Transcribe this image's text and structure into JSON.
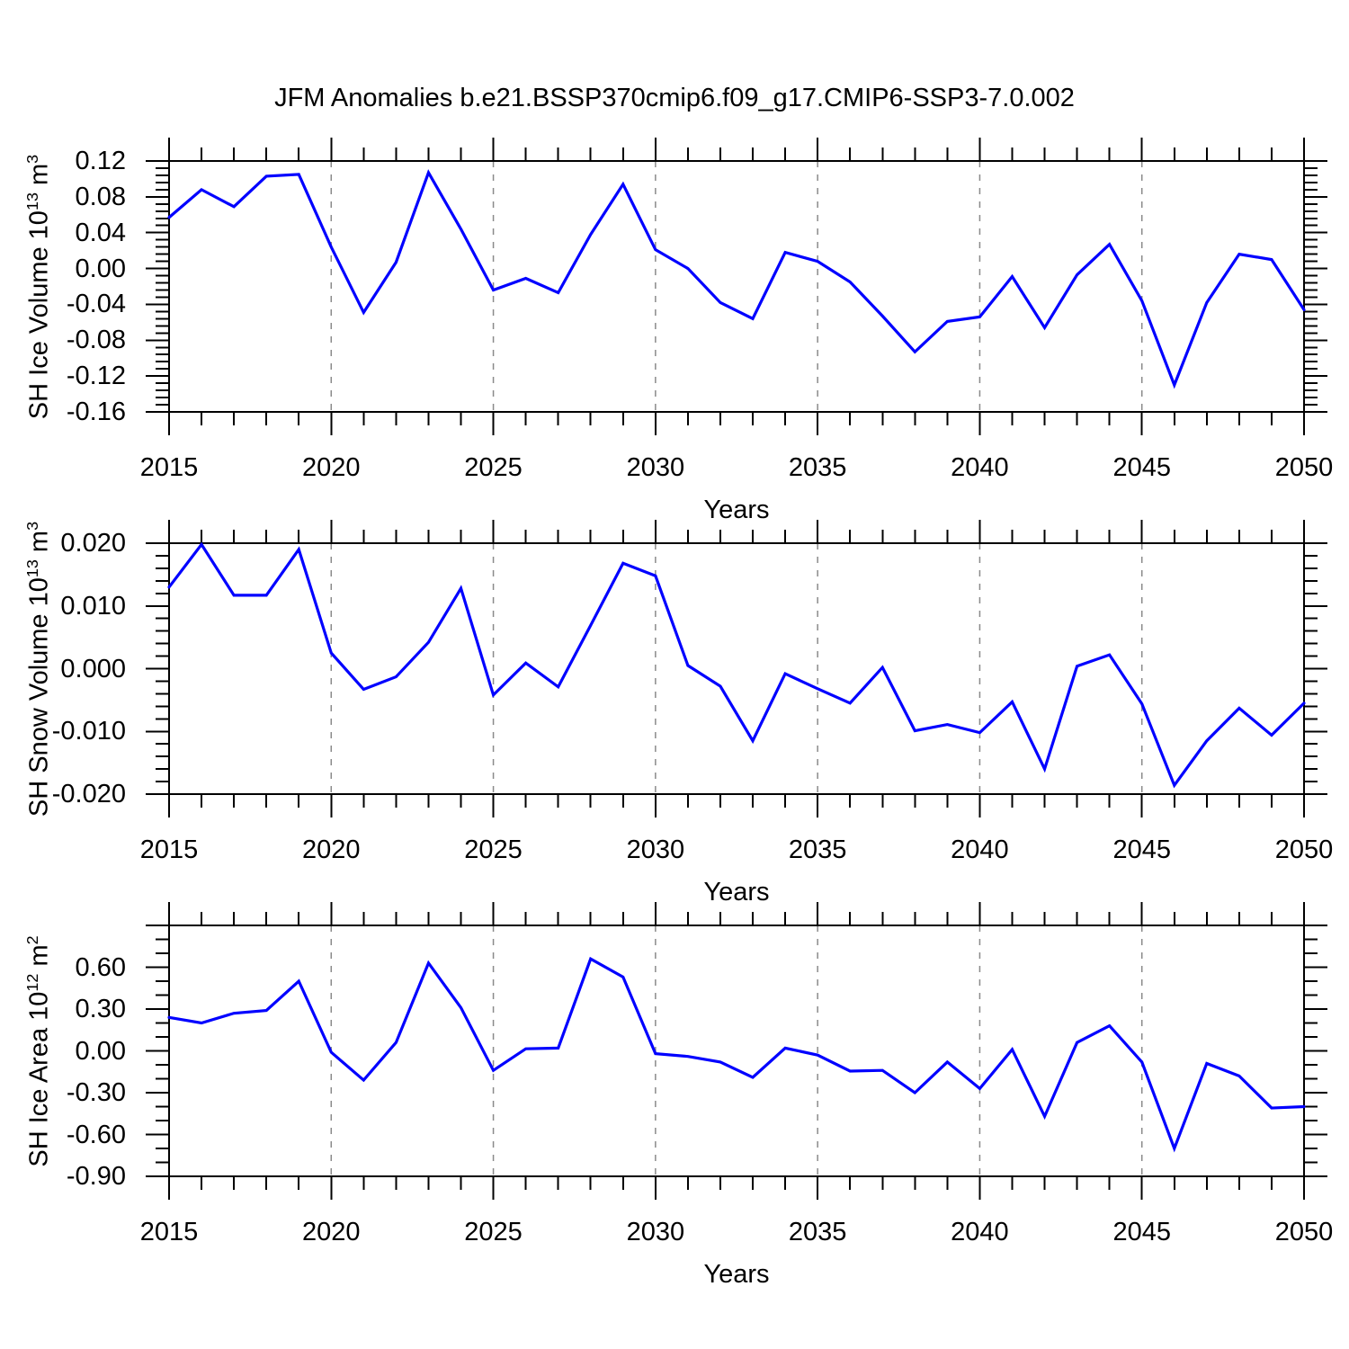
{
  "chart_data": {
    "type": "line",
    "title": "JFM Anomalies b.e21.BSSP370cmip6.f09_g17.CMIP6-SSP3-7.0.002",
    "xlabel": "Years",
    "x": [
      2015,
      2016,
      2017,
      2018,
      2019,
      2020,
      2021,
      2022,
      2023,
      2024,
      2025,
      2026,
      2027,
      2028,
      2029,
      2030,
      2031,
      2032,
      2033,
      2034,
      2035,
      2036,
      2037,
      2038,
      2039,
      2040,
      2041,
      2042,
      2043,
      2044,
      2045,
      2046,
      2047,
      2048,
      2049,
      2050
    ],
    "x_axis": {
      "min": 2015,
      "max": 2050,
      "major_tick_step": 5,
      "minor_tick_step": 1,
      "major_tick_labels": [
        "2015",
        "2020",
        "2025",
        "2030",
        "2035",
        "2040",
        "2045",
        "2050"
      ],
      "dashed_gridline_years": [
        2020,
        2025,
        2030,
        2035,
        2040,
        2045
      ],
      "grid": "dashed-vertical-only"
    },
    "line_color": "#0000ff",
    "grid_color": "#8a8a8a",
    "frame_color": "#000000",
    "background_color": "#ffffff",
    "legend": "none",
    "panels": [
      {
        "id": "sh-ice-volume",
        "ylabel": {
          "base": "SH Ice Volume 10",
          "exp": "13",
          "unit": " m",
          "unit_exp": "3"
        },
        "ylabel_plain": "SH Ice Volume 10^13 m^3",
        "y_axis": {
          "min": -0.16,
          "max": 0.12,
          "major_tick_step": 0.04,
          "minor_tick_step": 0.008,
          "tick_values": [
            0.12,
            0.08,
            0.04,
            0.0,
            -0.04,
            -0.08,
            -0.12,
            -0.16
          ],
          "tick_labels": [
            "0.12",
            "0.08",
            "0.04",
            "0.00",
            "-0.04",
            "-0.08",
            "-0.12",
            "-0.16"
          ]
        },
        "series": [
          {
            "name": "SH Ice Volume anomaly",
            "values": [
              0.057,
              0.088,
              0.069,
              0.103,
              0.105,
              0.024,
              -0.049,
              0.007,
              0.107,
              0.044,
              -0.024,
              -0.011,
              -0.027,
              0.038,
              0.094,
              0.021,
              0.0,
              -0.038,
              -0.056,
              0.018,
              0.008,
              -0.015,
              -0.053,
              -0.093,
              -0.059,
              -0.054,
              -0.009,
              -0.066,
              -0.007,
              0.027,
              -0.036,
              -0.13,
              -0.038,
              0.016,
              0.01,
              -0.046
            ]
          }
        ]
      },
      {
        "id": "sh-snow-volume",
        "ylabel": {
          "base": "SH Snow Volume 10",
          "exp": "13",
          "unit": " m",
          "unit_exp": "3"
        },
        "ylabel_plain": "SH Snow Volume 10^13 m^3",
        "y_axis": {
          "min": -0.02,
          "max": 0.02,
          "major_tick_step": 0.01,
          "minor_tick_step": 0.002,
          "tick_values": [
            0.02,
            0.01,
            0.0,
            -0.01,
            -0.02
          ],
          "tick_labels": [
            "0.020",
            "0.010",
            "0.000",
            "-0.010",
            "-0.020"
          ]
        },
        "series": [
          {
            "name": "SH Snow Volume anomaly",
            "values": [
              0.013,
              0.0198,
              0.0117,
              0.0117,
              0.019,
              0.0025,
              -0.0033,
              -0.0013,
              0.0042,
              0.0128,
              -0.0042,
              0.0009,
              -0.0029,
              0.0069,
              0.0168,
              0.0148,
              0.0005,
              -0.0028,
              -0.0115,
              -0.0008,
              -0.0032,
              -0.0055,
              0.0002,
              -0.0099,
              -0.0089,
              -0.0102,
              -0.0053,
              -0.016,
              0.0004,
              0.0022,
              -0.0056,
              -0.0186,
              -0.0115,
              -0.0063,
              -0.0106,
              -0.0055
            ]
          }
        ]
      },
      {
        "id": "sh-ice-area",
        "ylabel": {
          "base": "SH Ice Area 10",
          "exp": "12",
          "unit": " m",
          "unit_exp": "2"
        },
        "ylabel_plain": "SH Ice Area 10^12 m^2",
        "y_axis": {
          "min": -0.9,
          "max": 0.9,
          "major_tick_step": 0.3,
          "minor_tick_step": 0.1,
          "tick_values": [
            0.6,
            0.3,
            0.0,
            -0.3,
            -0.6,
            -0.9
          ],
          "tick_labels": [
            "0.60",
            "0.30",
            "0.00",
            "-0.30",
            "-0.60",
            "-0.90"
          ]
        },
        "series": [
          {
            "name": "SH Ice Area anomaly",
            "values": [
              0.24,
              0.2,
              0.27,
              0.29,
              0.5,
              -0.01,
              -0.21,
              0.06,
              0.63,
              0.31,
              -0.14,
              0.015,
              0.02,
              0.66,
              0.53,
              -0.02,
              -0.04,
              -0.08,
              -0.19,
              0.02,
              -0.03,
              -0.145,
              -0.14,
              -0.3,
              -0.08,
              -0.27,
              0.01,
              -0.47,
              0.06,
              0.18,
              -0.08,
              -0.7,
              -0.09,
              -0.18,
              -0.41,
              -0.4
            ]
          }
        ]
      }
    ]
  }
}
